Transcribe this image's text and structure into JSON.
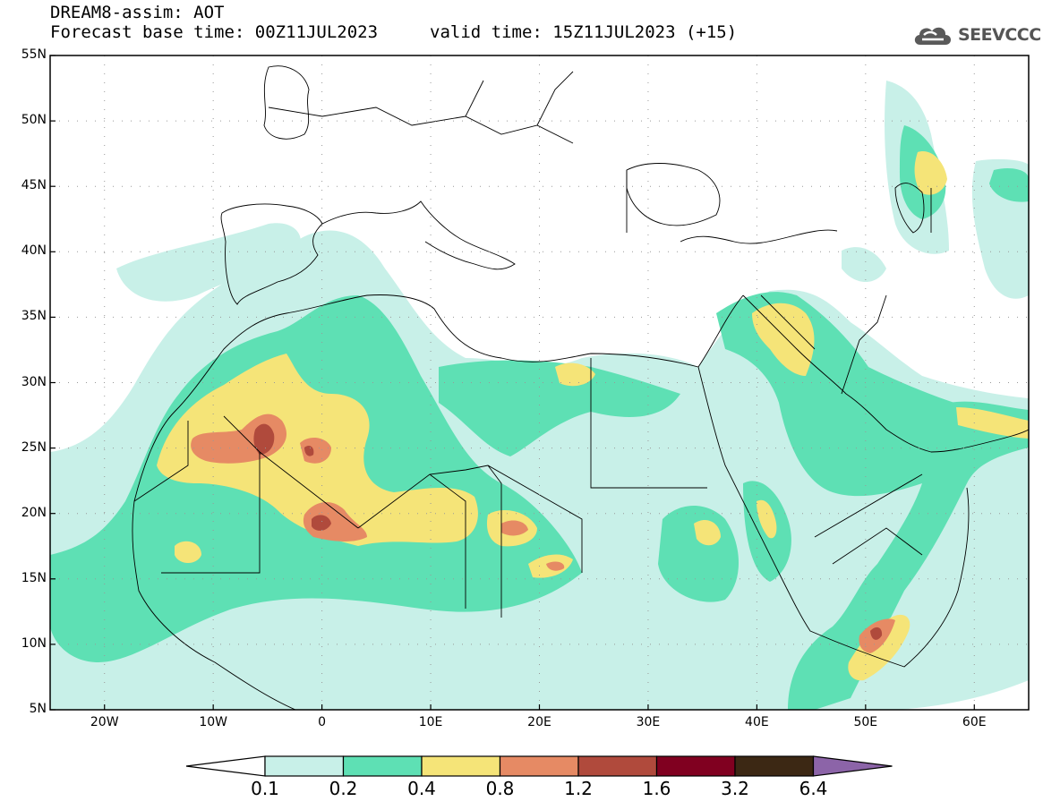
{
  "header": {
    "line1": "DREAM8-assim: AOT",
    "line2_left": "Forecast base time: 00Z11JUL2023",
    "line2_right": "valid time: 15Z11JUL2023 (+15)"
  },
  "logo": {
    "text": "SEEVCCC",
    "icon": "cloud-icon"
  },
  "map": {
    "lat_labels": [
      "55N",
      "50N",
      "45N",
      "40N",
      "35N",
      "30N",
      "25N",
      "20N",
      "15N",
      "10N",
      "5N"
    ],
    "lon_labels": [
      "20W",
      "10W",
      "0",
      "10E",
      "20E",
      "30E",
      "40E",
      "50E",
      "60E"
    ],
    "field": "AOT (aerosol optical thickness)"
  },
  "colorbar": {
    "labels": [
      "0.1",
      "0.2",
      "0.4",
      "0.8",
      "1.2",
      "1.6",
      "3.2",
      "6.4"
    ],
    "colors": [
      "#ffffff",
      "#c8f0e8",
      "#5ee0b4",
      "#f5e478",
      "#e68a64",
      "#b04a3c",
      "#800020",
      "#3c2814",
      "#8c64a8"
    ]
  }
}
